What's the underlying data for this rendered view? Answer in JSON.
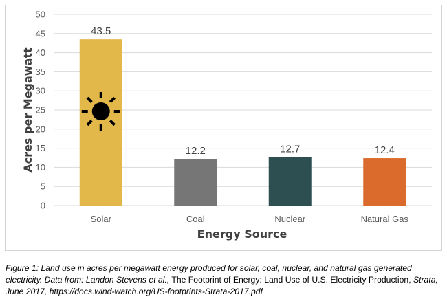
{
  "chart_data": {
    "type": "bar",
    "title": "",
    "xlabel": "Energy Source",
    "ylabel": "Acres per Megawatt",
    "categories": [
      "Solar",
      "Coal",
      "Nuclear",
      "Natural Gas"
    ],
    "values": [
      43.5,
      12.2,
      12.7,
      12.4
    ],
    "data_labels": [
      "43.5",
      "12.2",
      "12.7",
      "12.4"
    ],
    "colors": [
      "#E2B84A",
      "#767676",
      "#2E4F52",
      "#DB6B2D"
    ],
    "ylim": [
      0,
      50
    ],
    "yticks": [
      0,
      5,
      10,
      15,
      20,
      25,
      30,
      35,
      40,
      45,
      50
    ],
    "grid": "horizontal",
    "annotation_icon": "sun-icon"
  },
  "caption": {
    "prefix": "Figure 1: Land use in acres per megawatt energy produced for solar, coal, nuclear, and natural gas generated electricity. Data from: Landon Stevens et al.,",
    "title": " The Footprint of Energy: Land Use of U.S. Electricity Production, ",
    "suffix": "Strata, June 2017, https://docs.wind-watch.org/US-footprints-Strata-2017.pdf"
  }
}
